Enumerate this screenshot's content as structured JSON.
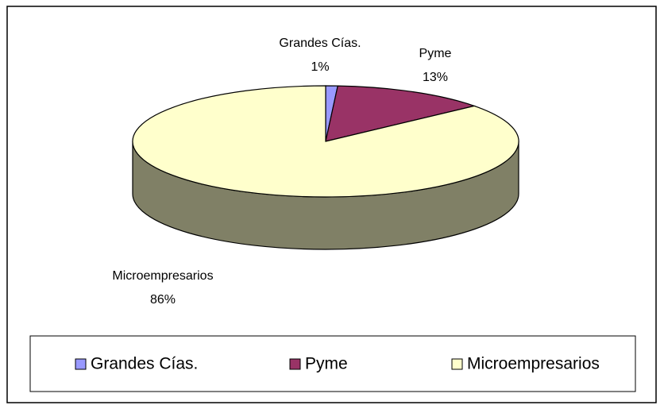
{
  "chart_data": {
    "type": "pie3d",
    "categories": [
      "Grandes Cías.",
      "Pyme",
      "Microempresarios"
    ],
    "values": [
      1,
      13,
      86
    ],
    "value_labels": [
      "1%",
      "13%",
      "86%"
    ],
    "colors": [
      "#9999ff",
      "#993366",
      "#ffffcc"
    ],
    "legend": "bottom"
  }
}
